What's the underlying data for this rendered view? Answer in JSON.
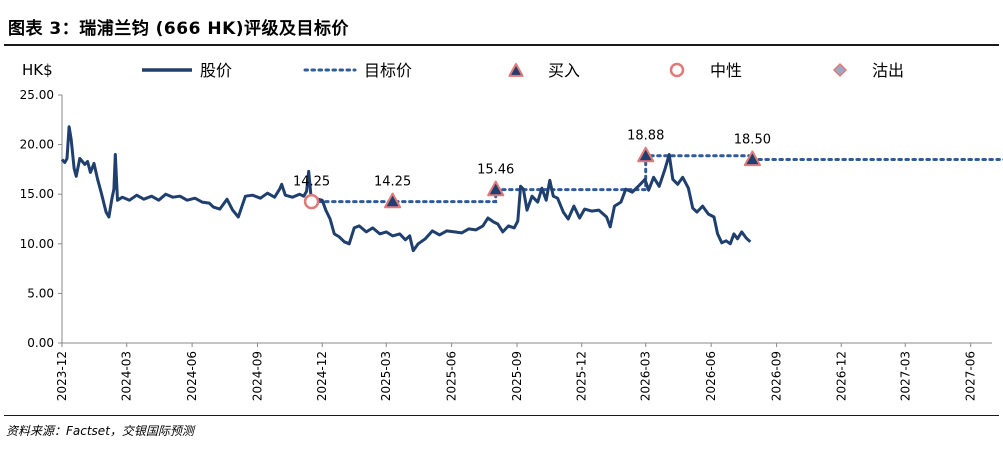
{
  "title": "图表 3：瑞浦兰钧 (666 HK)评级及目标价",
  "source": "资料来源：Factset，交银国际预测",
  "chart_data": {
    "type": "line",
    "unit_label": "HK$",
    "ylim": [
      0,
      25
    ],
    "y_ticks": [
      "0.00",
      "5.00",
      "10.00",
      "15.00",
      "20.00",
      "25.00"
    ],
    "x_ticks": [
      "2023-12",
      "2024-03",
      "2024-06",
      "2024-09",
      "2024-12",
      "2025-03",
      "2025-06",
      "2025-09",
      "2025-12",
      "2026-03",
      "2026-06",
      "2026-09",
      "2026-12",
      "2027-03",
      "2027-06"
    ],
    "legend": {
      "price": "股价",
      "target": "目标价",
      "buy": "买入",
      "neutral": "中性",
      "sell": "沽出"
    },
    "colors": {
      "price": "#1f3f6e",
      "target": "#2e5c9a",
      "marker_fill_buy": "#1f3f6e",
      "marker_edge": "#e07a7a",
      "neutral_fill": "#ffffff",
      "sell_fill": "#9aa9c4"
    },
    "price_series": [
      [
        "2023-12-01",
        18.5
      ],
      [
        "2023-12-05",
        18.2
      ],
      [
        "2023-12-08",
        18.6
      ],
      [
        "2023-12-11",
        21.8
      ],
      [
        "2023-12-14",
        20.5
      ],
      [
        "2023-12-18",
        17.6
      ],
      [
        "2023-12-21",
        16.8
      ],
      [
        "2023-12-26",
        18.6
      ],
      [
        "2024-01-02",
        18.0
      ],
      [
        "2024-01-06",
        18.3
      ],
      [
        "2024-01-10",
        17.2
      ],
      [
        "2024-01-15",
        18.1
      ],
      [
        "2024-01-20",
        16.5
      ],
      [
        "2024-01-25",
        15.2
      ],
      [
        "2024-02-01",
        13.2
      ],
      [
        "2024-02-05",
        12.7
      ],
      [
        "2024-02-09",
        14.5
      ],
      [
        "2024-02-12",
        15.5
      ],
      [
        "2024-02-14",
        19.0
      ],
      [
        "2024-02-17",
        14.4
      ],
      [
        "2024-02-24",
        14.7
      ],
      [
        "2024-03-05",
        14.4
      ],
      [
        "2024-03-15",
        14.9
      ],
      [
        "2024-03-25",
        14.5
      ],
      [
        "2024-04-05",
        14.8
      ],
      [
        "2024-04-15",
        14.4
      ],
      [
        "2024-04-25",
        15.0
      ],
      [
        "2024-05-05",
        14.7
      ],
      [
        "2024-05-15",
        14.8
      ],
      [
        "2024-05-25",
        14.4
      ],
      [
        "2024-06-05",
        14.6
      ],
      [
        "2024-06-15",
        14.2
      ],
      [
        "2024-06-25",
        14.1
      ],
      [
        "2024-07-01",
        13.7
      ],
      [
        "2024-07-10",
        13.5
      ],
      [
        "2024-07-20",
        14.5
      ],
      [
        "2024-07-28",
        13.4
      ],
      [
        "2024-08-05",
        12.7
      ],
      [
        "2024-08-15",
        14.8
      ],
      [
        "2024-08-25",
        14.9
      ],
      [
        "2024-09-05",
        14.6
      ],
      [
        "2024-09-15",
        15.1
      ],
      [
        "2024-09-25",
        14.7
      ],
      [
        "2024-10-02",
        15.5
      ],
      [
        "2024-10-05",
        16.0
      ],
      [
        "2024-10-10",
        14.9
      ],
      [
        "2024-10-20",
        14.7
      ],
      [
        "2024-10-30",
        15.0
      ],
      [
        "2024-11-05",
        14.8
      ],
      [
        "2024-11-09",
        15.3
      ],
      [
        "2024-11-12",
        17.3
      ],
      [
        "2024-11-15",
        14.9
      ],
      [
        "2024-11-25",
        14.5
      ],
      [
        "2024-12-01",
        14.4
      ],
      [
        "2024-12-06",
        13.4
      ],
      [
        "2024-12-12",
        12.5
      ],
      [
        "2024-12-18",
        11.0
      ],
      [
        "2024-12-25",
        10.7
      ],
      [
        "2025-01-01",
        10.2
      ],
      [
        "2025-01-08",
        10.0
      ],
      [
        "2025-01-15",
        11.6
      ],
      [
        "2025-01-22",
        11.8
      ],
      [
        "2025-02-01",
        11.2
      ],
      [
        "2025-02-10",
        11.6
      ],
      [
        "2025-02-20",
        11.0
      ],
      [
        "2025-03-01",
        11.2
      ],
      [
        "2025-03-10",
        10.8
      ],
      [
        "2025-03-20",
        11.0
      ],
      [
        "2025-03-28",
        10.4
      ],
      [
        "2025-04-03",
        10.8
      ],
      [
        "2025-04-08",
        9.3
      ],
      [
        "2025-04-15",
        10.0
      ],
      [
        "2025-04-25",
        10.5
      ],
      [
        "2025-05-05",
        11.3
      ],
      [
        "2025-05-15",
        10.9
      ],
      [
        "2025-05-25",
        11.3
      ],
      [
        "2025-06-05",
        11.2
      ],
      [
        "2025-06-15",
        11.1
      ],
      [
        "2025-06-25",
        11.5
      ],
      [
        "2025-07-05",
        11.4
      ],
      [
        "2025-07-15",
        11.8
      ],
      [
        "2025-07-22",
        12.6
      ],
      [
        "2025-07-30",
        12.2
      ],
      [
        "2025-08-05",
        12.0
      ],
      [
        "2025-08-12",
        11.2
      ],
      [
        "2025-08-20",
        11.8
      ],
      [
        "2025-08-28",
        11.6
      ],
      [
        "2025-09-02",
        12.3
      ],
      [
        "2025-09-06",
        15.8
      ],
      [
        "2025-09-10",
        15.5
      ],
      [
        "2025-09-15",
        13.4
      ],
      [
        "2025-09-22",
        14.8
      ],
      [
        "2025-09-30",
        14.2
      ],
      [
        "2025-10-06",
        15.6
      ],
      [
        "2025-10-12",
        14.4
      ],
      [
        "2025-10-17",
        16.4
      ],
      [
        "2025-10-22",
        14.8
      ],
      [
        "2025-10-28",
        14.6
      ],
      [
        "2025-11-05",
        13.2
      ],
      [
        "2025-11-12",
        12.5
      ],
      [
        "2025-11-20",
        13.8
      ],
      [
        "2025-11-28",
        12.6
      ],
      [
        "2025-12-05",
        13.5
      ],
      [
        "2025-12-15",
        13.3
      ],
      [
        "2025-12-25",
        13.4
      ],
      [
        "2026-01-05",
        12.7
      ],
      [
        "2026-01-10",
        11.7
      ],
      [
        "2026-01-16",
        13.8
      ],
      [
        "2026-01-25",
        14.2
      ],
      [
        "2026-02-01",
        15.5
      ],
      [
        "2026-02-10",
        15.2
      ],
      [
        "2026-02-20",
        15.9
      ],
      [
        "2026-02-28",
        16.5
      ],
      [
        "2026-03-05",
        15.4
      ],
      [
        "2026-03-12",
        16.7
      ],
      [
        "2026-03-20",
        15.8
      ],
      [
        "2026-03-28",
        17.5
      ],
      [
        "2026-04-03",
        19.0
      ],
      [
        "2026-04-08",
        16.5
      ],
      [
        "2026-04-15",
        16.0
      ],
      [
        "2026-04-22",
        16.7
      ],
      [
        "2026-04-30",
        15.6
      ],
      [
        "2026-05-06",
        13.6
      ],
      [
        "2026-05-12",
        13.2
      ],
      [
        "2026-05-20",
        13.8
      ],
      [
        "2026-05-28",
        13.0
      ],
      [
        "2026-06-05",
        12.7
      ],
      [
        "2026-06-10",
        11.0
      ],
      [
        "2026-06-16",
        10.1
      ],
      [
        "2026-06-22",
        10.3
      ],
      [
        "2026-06-28",
        10.0
      ],
      [
        "2026-07-03",
        11.0
      ],
      [
        "2026-07-08",
        10.5
      ],
      [
        "2026-07-14",
        11.2
      ],
      [
        "2026-07-20",
        10.6
      ],
      [
        "2026-07-26",
        10.2
      ]
    ],
    "target_series": [
      [
        "2024-11-16",
        14.25
      ],
      [
        "2025-08-02",
        14.25
      ],
      [
        "2025-08-02",
        15.46
      ],
      [
        "2026-03-01",
        15.46
      ],
      [
        "2026-03-01",
        18.88
      ],
      [
        "2026-07-29",
        18.88
      ],
      [
        "2026-07-29",
        18.5
      ],
      [
        "2027-08-01",
        18.5
      ]
    ],
    "ratings": [
      {
        "date": "2024-11-16",
        "value": 14.25,
        "rating": "neutral",
        "label": "14.25"
      },
      {
        "date": "2025-03-10",
        "value": 14.25,
        "rating": "buy",
        "label": "14.25"
      },
      {
        "date": "2025-08-02",
        "value": 15.46,
        "rating": "buy",
        "label": "15.46"
      },
      {
        "date": "2026-03-01",
        "value": 18.88,
        "rating": "buy",
        "label": "18.88"
      },
      {
        "date": "2026-07-29",
        "value": 18.5,
        "rating": "buy",
        "label": "18.50"
      }
    ]
  }
}
